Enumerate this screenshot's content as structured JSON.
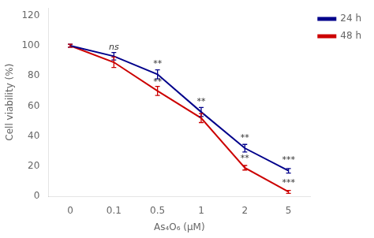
{
  "chart_data": {
    "type": "line",
    "categories": [
      "0",
      "0.1",
      "0.5",
      "1",
      "2",
      "5"
    ],
    "series": [
      {
        "name": "24 h",
        "color": "#00008B",
        "values": [
          100,
          93,
          81,
          56,
          32,
          17
        ],
        "errors": [
          1.0,
          2.5,
          3.0,
          3.0,
          2.5,
          1.5
        ]
      },
      {
        "name": "48 h",
        "color": "#CC0000",
        "values": [
          100,
          89,
          70,
          52,
          19,
          3
        ],
        "errors": [
          1.0,
          3.5,
          3.0,
          3.0,
          1.5,
          1.0
        ]
      }
    ],
    "xlabel": "As₄O₆ (μM)",
    "ylabel": "Cell viability (%)",
    "ylim": [
      0,
      125
    ],
    "yticks": [
      0,
      20,
      40,
      60,
      80,
      100,
      120
    ],
    "grid": false,
    "legend": "right",
    "marker": "none",
    "annotations": [
      {
        "text": "ns",
        "x": "0.1",
        "y": 96
      },
      {
        "text": "**",
        "x": "0.5",
        "y": 85
      },
      {
        "text": "**",
        "x": "0.5",
        "y": 73
      },
      {
        "text": "**",
        "x": "1",
        "y": 60
      },
      {
        "text": "**",
        "x": "2",
        "y": 36
      },
      {
        "text": "**",
        "x": "2",
        "y": 22
      },
      {
        "text": "***",
        "x": "5",
        "y": 21
      },
      {
        "text": "***",
        "x": "5",
        "y": 6
      }
    ]
  }
}
